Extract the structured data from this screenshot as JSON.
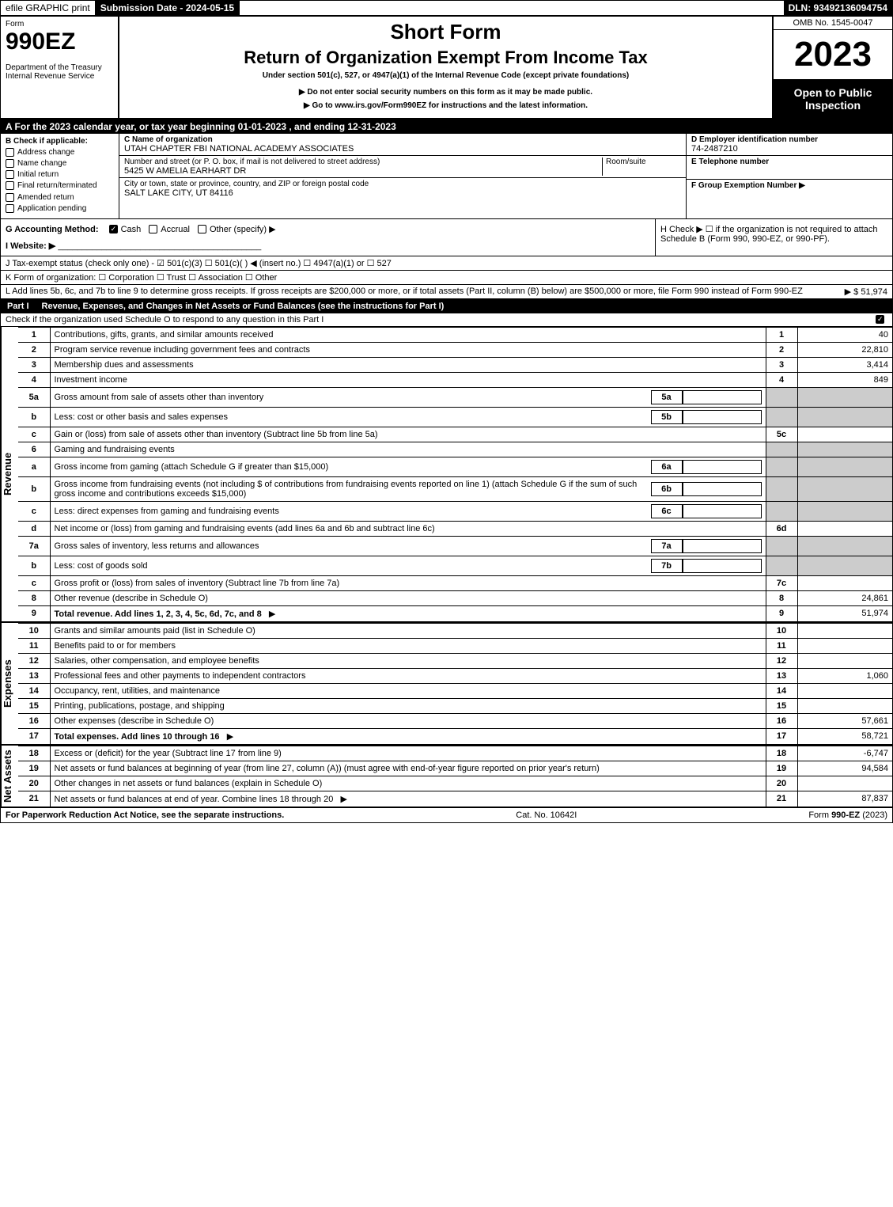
{
  "topbar": {
    "efile": "efile GRAPHIC print",
    "subdate_label": "Submission Date - 2024-05-15",
    "dln": "DLN: 93492136094754"
  },
  "header": {
    "form_word": "Form",
    "form_num": "990EZ",
    "dept": "Department of the Treasury\nInternal Revenue Service",
    "title1": "Short Form",
    "title2": "Return of Organization Exempt From Income Tax",
    "subtitle": "Under section 501(c), 527, or 4947(a)(1) of the Internal Revenue Code (except private foundations)",
    "note1": "▶ Do not enter social security numbers on this form as it may be made public.",
    "note2": "▶ Go to www.irs.gov/Form990EZ for instructions and the latest information.",
    "omb": "OMB No. 1545-0047",
    "year": "2023",
    "open": "Open to Public Inspection"
  },
  "rowA": "A  For the 2023 calendar year, or tax year beginning 01-01-2023 , and ending 12-31-2023",
  "B": {
    "label": "Check if applicable:",
    "items": [
      "Address change",
      "Name change",
      "Initial return",
      "Final return/terminated",
      "Amended return",
      "Application pending"
    ]
  },
  "C": {
    "name_lbl": "C Name of organization",
    "name": "UTAH CHAPTER FBI NATIONAL ACADEMY ASSOCIATES",
    "street_lbl": "Number and street (or P. O. box, if mail is not delivered to street address)",
    "room_lbl": "Room/suite",
    "street": "5425 W AMELIA EARHART DR",
    "city_lbl": "City or town, state or province, country, and ZIP or foreign postal code",
    "city": "SALT LAKE CITY, UT  84116"
  },
  "DEF": {
    "d_lbl": "D Employer identification number",
    "d_val": "74-2487210",
    "e_lbl": "E Telephone number",
    "f_lbl": "F Group Exemption Number   ▶"
  },
  "G": {
    "label": "G Accounting Method:",
    "opts": [
      "Cash",
      "Accrual",
      "Other (specify) ▶"
    ],
    "checked": 0
  },
  "H": "H  Check ▶  ☐  if the organization is not required to attach Schedule B (Form 990, 990-EZ, or 990-PF).",
  "I": "I Website: ▶",
  "J": "J Tax-exempt status (check only one) - ☑ 501(c)(3) ☐ 501(c)(  ) ◀ (insert no.) ☐ 4947(a)(1) or ☐ 527",
  "K": "K Form of organization:  ☐ Corporation  ☐ Trust  ☐ Association  ☐ Other",
  "L": {
    "text": "L Add lines 5b, 6c, and 7b to line 9 to determine gross receipts. If gross receipts are $200,000 or more, or if total assets (Part II, column (B) below) are $500,000 or more, file Form 990 instead of Form 990-EZ",
    "amt": "▶ $ 51,974"
  },
  "part1": {
    "bar_lbl": "Part I",
    "bar_txt": "Revenue, Expenses, and Changes in Net Assets or Fund Balances (see the instructions for Part I)",
    "check_line": "Check if the organization used Schedule O to respond to any question in this Part I",
    "checked": true
  },
  "sections": {
    "revenue_label": "Revenue",
    "expenses_label": "Expenses",
    "netassets_label": "Net Assets"
  },
  "rows": [
    {
      "n": "1",
      "d": "Contributions, gifts, grants, and similar amounts received",
      "b": "1",
      "a": "40"
    },
    {
      "n": "2",
      "d": "Program service revenue including government fees and contracts",
      "b": "2",
      "a": "22,810"
    },
    {
      "n": "3",
      "d": "Membership dues and assessments",
      "b": "3",
      "a": "3,414"
    },
    {
      "n": "4",
      "d": "Investment income",
      "b": "4",
      "a": "849"
    },
    {
      "n": "5a",
      "d": "Gross amount from sale of assets other than inventory",
      "ib": "5a"
    },
    {
      "n": "b",
      "d": "Less: cost or other basis and sales expenses",
      "ib": "5b"
    },
    {
      "n": "c",
      "d": "Gain or (loss) from sale of assets other than inventory (Subtract line 5b from line 5a)",
      "b": "5c",
      "a": ""
    },
    {
      "n": "6",
      "d": "Gaming and fundraising events",
      "noline": true
    },
    {
      "n": "a",
      "d": "Gross income from gaming (attach Schedule G if greater than $15,000)",
      "ib": "6a"
    },
    {
      "n": "b",
      "d": "Gross income from fundraising events (not including $                    of contributions from fundraising events reported on line 1) (attach Schedule G if the sum of such gross income and contributions exceeds $15,000)",
      "ib": "6b"
    },
    {
      "n": "c",
      "d": "Less: direct expenses from gaming and fundraising events",
      "ib": "6c"
    },
    {
      "n": "d",
      "d": "Net income or (loss) from gaming and fundraising events (add lines 6a and 6b and subtract line 6c)",
      "b": "6d",
      "a": ""
    },
    {
      "n": "7a",
      "d": "Gross sales of inventory, less returns and allowances",
      "ib": "7a"
    },
    {
      "n": "b",
      "d": "Less: cost of goods sold",
      "ib": "7b"
    },
    {
      "n": "c",
      "d": "Gross profit or (loss) from sales of inventory (Subtract line 7b from line 7a)",
      "b": "7c",
      "a": ""
    },
    {
      "n": "8",
      "d": "Other revenue (describe in Schedule O)",
      "b": "8",
      "a": "24,861"
    },
    {
      "n": "9",
      "d": "Total revenue. Add lines 1, 2, 3, 4, 5c, 6d, 7c, and 8",
      "b": "9",
      "a": "51,974",
      "bold": true,
      "arrow": true
    }
  ],
  "exp_rows": [
    {
      "n": "10",
      "d": "Grants and similar amounts paid (list in Schedule O)",
      "b": "10",
      "a": ""
    },
    {
      "n": "11",
      "d": "Benefits paid to or for members",
      "b": "11",
      "a": ""
    },
    {
      "n": "12",
      "d": "Salaries, other compensation, and employee benefits",
      "b": "12",
      "a": ""
    },
    {
      "n": "13",
      "d": "Professional fees and other payments to independent contractors",
      "b": "13",
      "a": "1,060"
    },
    {
      "n": "14",
      "d": "Occupancy, rent, utilities, and maintenance",
      "b": "14",
      "a": ""
    },
    {
      "n": "15",
      "d": "Printing, publications, postage, and shipping",
      "b": "15",
      "a": ""
    },
    {
      "n": "16",
      "d": "Other expenses (describe in Schedule O)",
      "b": "16",
      "a": "57,661"
    },
    {
      "n": "17",
      "d": "Total expenses. Add lines 10 through 16",
      "b": "17",
      "a": "58,721",
      "bold": true,
      "arrow": true
    }
  ],
  "net_rows": [
    {
      "n": "18",
      "d": "Excess or (deficit) for the year (Subtract line 17 from line 9)",
      "b": "18",
      "a": "-6,747"
    },
    {
      "n": "19",
      "d": "Net assets or fund balances at beginning of year (from line 27, column (A)) (must agree with end-of-year figure reported on prior year's return)",
      "b": "19",
      "a": "94,584"
    },
    {
      "n": "20",
      "d": "Other changes in net assets or fund balances (explain in Schedule O)",
      "b": "20",
      "a": ""
    },
    {
      "n": "21",
      "d": "Net assets or fund balances at end of year. Combine lines 18 through 20",
      "b": "21",
      "a": "87,837",
      "arrow": true
    }
  ],
  "footer": {
    "left": "For Paperwork Reduction Act Notice, see the separate instructions.",
    "mid": "Cat. No. 10642I",
    "right": "Form 990-EZ (2023)"
  }
}
